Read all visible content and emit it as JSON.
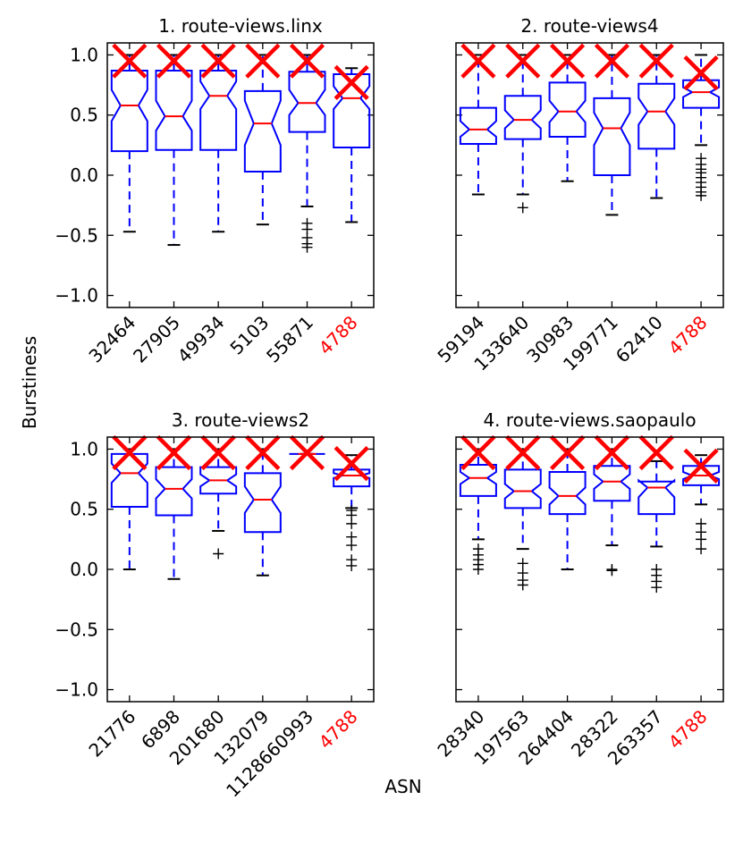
{
  "figure": {
    "ylabel": "Burstiness",
    "xlabel": "ASN"
  },
  "colors": {
    "box": "#0000ff",
    "median": "#ff0000",
    "highlight": "#ff0000",
    "marker": "#ff0000",
    "frame": "#000000"
  },
  "yaxis": {
    "ylim": [
      -1.1,
      1.1
    ],
    "ticks": [
      1.0,
      0.5,
      0.0,
      -0.5,
      -1.0
    ],
    "tick_labels": [
      "1.0",
      "0.5",
      "0.0",
      "−0.5",
      "−1.0"
    ]
  },
  "chart_data": [
    {
      "type": "boxplot",
      "title": "1. route-views.linx",
      "categories": [
        "32464",
        "27905",
        "49934",
        "5103",
        "55871",
        "4788"
      ],
      "highlight_index": 5,
      "boxes": [
        {
          "whislo": -0.47,
          "q1": 0.2,
          "med": 0.58,
          "q3": 0.87,
          "whishi": 1.0,
          "notch_lo": 0.45,
          "notch_hi": 0.71,
          "fliers": [],
          "marker": 0.95
        },
        {
          "whislo": -0.58,
          "q1": 0.21,
          "med": 0.49,
          "q3": 0.87,
          "whishi": 1.0,
          "notch_lo": 0.37,
          "notch_hi": 0.62,
          "fliers": [],
          "marker": 0.95
        },
        {
          "whislo": -0.47,
          "q1": 0.21,
          "med": 0.66,
          "q3": 0.87,
          "whishi": 1.0,
          "notch_lo": 0.55,
          "notch_hi": 0.78,
          "fliers": [],
          "marker": 0.95
        },
        {
          "whislo": -0.41,
          "q1": 0.03,
          "med": 0.43,
          "q3": 0.7,
          "whishi": 1.0,
          "notch_lo": 0.25,
          "notch_hi": 0.62,
          "fliers": [],
          "marker": 0.95
        },
        {
          "whislo": -0.26,
          "q1": 0.36,
          "med": 0.6,
          "q3": 0.86,
          "whishi": 1.0,
          "notch_lo": 0.5,
          "notch_hi": 0.71,
          "fliers": [
            -0.4,
            -0.45,
            -0.52,
            -0.57,
            -0.6
          ],
          "marker": 0.95
        },
        {
          "whislo": -0.39,
          "q1": 0.23,
          "med": 0.64,
          "q3": 0.84,
          "whishi": 0.89,
          "notch_lo": 0.55,
          "notch_hi": 0.74,
          "fliers": [],
          "marker": 0.77
        }
      ]
    },
    {
      "type": "boxplot",
      "title": "2. route-views4",
      "categories": [
        "59194",
        "133640",
        "30983",
        "199771",
        "62410",
        "4788"
      ],
      "highlight_index": 5,
      "boxes": [
        {
          "whislo": -0.16,
          "q1": 0.26,
          "med": 0.38,
          "q3": 0.56,
          "whishi": 1.0,
          "notch_lo": 0.32,
          "notch_hi": 0.45,
          "fliers": [],
          "marker": 0.95
        },
        {
          "whislo": -0.16,
          "q1": 0.3,
          "med": 0.46,
          "q3": 0.66,
          "whishi": 1.0,
          "notch_lo": 0.39,
          "notch_hi": 0.54,
          "fliers": [
            -0.27
          ],
          "marker": 0.95
        },
        {
          "whislo": -0.05,
          "q1": 0.32,
          "med": 0.53,
          "q3": 0.77,
          "whishi": 1.0,
          "notch_lo": 0.44,
          "notch_hi": 0.62,
          "fliers": [],
          "marker": 0.95
        },
        {
          "whislo": -0.33,
          "q1": 0.0,
          "med": 0.39,
          "q3": 0.64,
          "whishi": 1.0,
          "notch_lo": 0.25,
          "notch_hi": 0.52,
          "fliers": [],
          "marker": 0.95
        },
        {
          "whislo": -0.19,
          "q1": 0.22,
          "med": 0.53,
          "q3": 0.76,
          "whishi": 1.0,
          "notch_lo": 0.42,
          "notch_hi": 0.64,
          "fliers": [],
          "marker": 0.95
        },
        {
          "whislo": 0.25,
          "q1": 0.56,
          "med": 0.69,
          "q3": 0.79,
          "whishi": 1.0,
          "notch_lo": 0.65,
          "notch_hi": 0.73,
          "fliers": [
            0.14,
            0.09,
            0.05,
            0.02,
            -0.02,
            -0.06,
            -0.1,
            -0.14,
            -0.17
          ],
          "marker": 0.85
        }
      ]
    },
    {
      "type": "boxplot",
      "title": "3. route-views2",
      "categories": [
        "21776",
        "6898",
        "201680",
        "132079",
        "1128660993",
        "4788"
      ],
      "highlight_index": 5,
      "boxes": [
        {
          "whislo": 0.0,
          "q1": 0.52,
          "med": 0.8,
          "q3": 0.96,
          "whishi": 1.0,
          "notch_lo": 0.72,
          "notch_hi": 0.88,
          "fliers": [],
          "marker": 0.97
        },
        {
          "whislo": -0.08,
          "q1": 0.45,
          "med": 0.67,
          "q3": 0.85,
          "whishi": 1.0,
          "notch_lo": 0.59,
          "notch_hi": 0.75,
          "fliers": [],
          "marker": 0.97
        },
        {
          "whislo": 0.32,
          "q1": 0.63,
          "med": 0.74,
          "q3": 0.85,
          "whishi": 1.0,
          "notch_lo": 0.69,
          "notch_hi": 0.79,
          "fliers": [
            0.13
          ],
          "marker": 0.97
        },
        {
          "whislo": -0.05,
          "q1": 0.31,
          "med": 0.58,
          "q3": 0.8,
          "whishi": 1.0,
          "notch_lo": 0.47,
          "notch_hi": 0.69,
          "fliers": [],
          "marker": 0.97
        },
        {
          "whislo": 0.96,
          "q1": 0.96,
          "med": 0.96,
          "q3": 0.96,
          "whishi": 0.96,
          "notch_lo": 0.96,
          "notch_hi": 0.96,
          "fliers": [],
          "marker": 0.97
        },
        {
          "whislo": 0.51,
          "q1": 0.69,
          "med": 0.78,
          "q3": 0.83,
          "whishi": 0.95,
          "notch_lo": 0.76,
          "notch_hi": 0.8,
          "fliers": [
            0.49,
            0.45,
            0.38,
            0.27,
            0.2,
            0.08,
            0.03
          ],
          "marker": 0.88
        }
      ]
    },
    {
      "type": "boxplot",
      "title": "4. route-views.saopaulo",
      "categories": [
        "28340",
        "197563",
        "264404",
        "28322",
        "263357",
        "4788"
      ],
      "highlight_index": 5,
      "boxes": [
        {
          "whislo": 0.25,
          "q1": 0.61,
          "med": 0.76,
          "q3": 0.87,
          "whishi": 1.0,
          "notch_lo": 0.71,
          "notch_hi": 0.81,
          "fliers": [
            0.17,
            0.12,
            0.08,
            0.04,
            0.0
          ],
          "marker": 0.97
        },
        {
          "whislo": 0.17,
          "q1": 0.51,
          "med": 0.65,
          "q3": 0.83,
          "whishi": 1.0,
          "notch_lo": 0.59,
          "notch_hi": 0.71,
          "fliers": [
            0.05,
            -0.03,
            -0.09,
            -0.13
          ],
          "marker": 0.97
        },
        {
          "whislo": 0.0,
          "q1": 0.46,
          "med": 0.61,
          "q3": 0.81,
          "whishi": 1.0,
          "notch_lo": 0.54,
          "notch_hi": 0.68,
          "fliers": [],
          "marker": 0.97
        },
        {
          "whislo": 0.2,
          "q1": 0.57,
          "med": 0.73,
          "q3": 0.86,
          "whishi": 1.0,
          "notch_lo": 0.67,
          "notch_hi": 0.79,
          "fliers": [
            0.0,
            -0.01
          ],
          "marker": 0.97
        },
        {
          "whislo": 0.19,
          "q1": 0.46,
          "med": 0.68,
          "q3": 0.73,
          "whishi": 0.9,
          "notch_lo": 0.6,
          "notch_hi": 0.74,
          "fliers": [
            0.0,
            -0.05,
            -0.1,
            -0.15
          ],
          "marker": 0.97
        },
        {
          "whislo": 0.54,
          "q1": 0.7,
          "med": 0.78,
          "q3": 0.86,
          "whishi": 0.95,
          "notch_lo": 0.75,
          "notch_hi": 0.81,
          "fliers": [
            0.38,
            0.31,
            0.25,
            0.17
          ],
          "marker": 0.86
        }
      ]
    }
  ]
}
